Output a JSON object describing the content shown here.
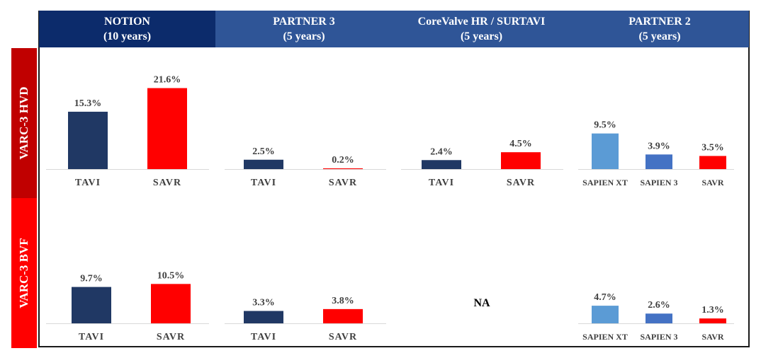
{
  "columns": [
    {
      "title": "NOTION",
      "subtitle": "(10 years)",
      "bg": "#0c2b6b"
    },
    {
      "title": "PARTNER 3",
      "subtitle": "(5 years)",
      "bg": "#2f5597"
    },
    {
      "title": "CoreValve HR / SURTAVI",
      "subtitle": "(5 years)",
      "bg": "#2f5597"
    },
    {
      "title": "PARTNER 2",
      "subtitle": "(5 years)",
      "bg": "#2f5597"
    }
  ],
  "rows": [
    {
      "label": "VARC-3 HVD",
      "bg": "#c00000"
    },
    {
      "label": "VARC-3 BVF",
      "bg": "#ff0000"
    }
  ],
  "na_text": "NA",
  "colors": {
    "TAVI": "#203864",
    "SAVR": "#ff0000",
    "SAPIEN XT": "#5b9bd5",
    "SAPIEN 3": "#4472c4"
  },
  "chart_data": [
    {
      "type": "bar",
      "row": "VARC-3 HVD",
      "column": "NOTION",
      "categories": [
        "TAVI",
        "SAVR"
      ],
      "values": [
        15.3,
        21.6
      ],
      "labels": [
        "15.3%",
        "21.6%"
      ]
    },
    {
      "type": "bar",
      "row": "VARC-3 HVD",
      "column": "PARTNER 3",
      "categories": [
        "TAVI",
        "SAVR"
      ],
      "values": [
        2.5,
        0.2
      ],
      "labels": [
        "2.5%",
        "0.2%"
      ]
    },
    {
      "type": "bar",
      "row": "VARC-3 HVD",
      "column": "CoreValve HR / SURTAVI",
      "categories": [
        "TAVI",
        "SAVR"
      ],
      "values": [
        2.4,
        4.5
      ],
      "labels": [
        "2.4%",
        "4.5%"
      ]
    },
    {
      "type": "bar",
      "row": "VARC-3 HVD",
      "column": "PARTNER 2",
      "categories": [
        "SAPIEN XT",
        "SAPIEN 3",
        "SAVR"
      ],
      "values": [
        9.5,
        3.9,
        3.5
      ],
      "labels": [
        "9.5%",
        "3.9%",
        "3.5%"
      ]
    },
    {
      "type": "bar",
      "row": "VARC-3 BVF",
      "column": "NOTION",
      "categories": [
        "TAVI",
        "SAVR"
      ],
      "values": [
        9.7,
        10.5
      ],
      "labels": [
        "9.7%",
        "10.5%"
      ]
    },
    {
      "type": "bar",
      "row": "VARC-3 BVF",
      "column": "PARTNER 3",
      "categories": [
        "TAVI",
        "SAVR"
      ],
      "values": [
        3.3,
        3.8
      ],
      "labels": [
        "3.3%",
        "3.8%"
      ]
    },
    {
      "type": "bar",
      "row": "VARC-3 BVF",
      "column": "PARTNER 2",
      "categories": [
        "SAPIEN XT",
        "SAPIEN 3",
        "SAVR"
      ],
      "values": [
        4.7,
        2.6,
        1.3
      ],
      "labels": [
        "4.7%",
        "2.6%",
        "1.3%"
      ]
    }
  ]
}
